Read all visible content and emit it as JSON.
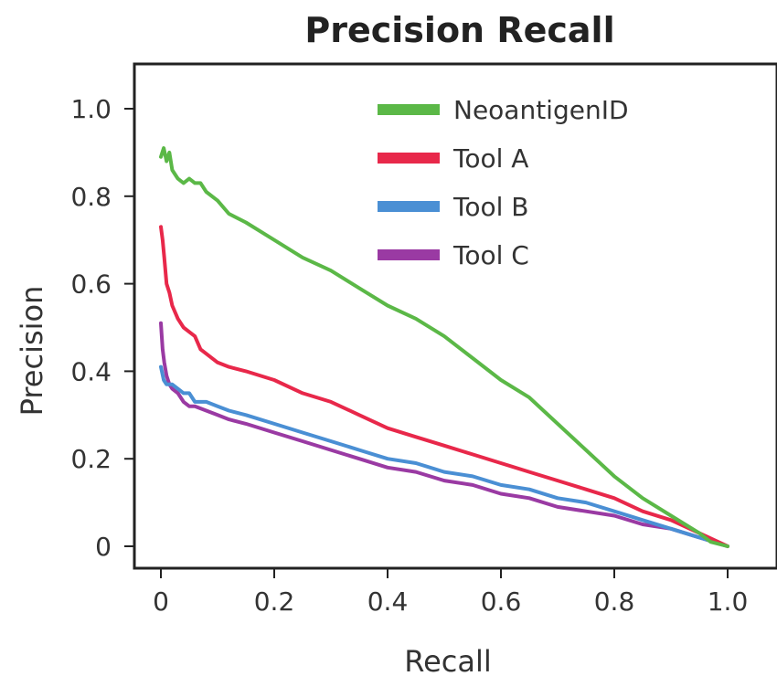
{
  "chart_data": {
    "type": "line",
    "title": "Precision Recall",
    "xlabel": "Recall",
    "ylabel": "Precision",
    "xlim": [
      0,
      1.0
    ],
    "ylim": [
      0,
      1.0
    ],
    "x_ticks": [
      "0",
      "0.2",
      "0.4",
      "0.6",
      "0.8",
      "1.0"
    ],
    "y_ticks": [
      "0",
      "0.2",
      "0.4",
      "0.6",
      "0.8",
      "1.0"
    ],
    "legend_position": "top-right",
    "grid": false,
    "series": [
      {
        "name": "NeoantigenID",
        "color": "#5bb847",
        "points": [
          [
            0.0,
            0.89
          ],
          [
            0.005,
            0.91
          ],
          [
            0.01,
            0.88
          ],
          [
            0.015,
            0.9
          ],
          [
            0.02,
            0.86
          ],
          [
            0.03,
            0.84
          ],
          [
            0.04,
            0.83
          ],
          [
            0.05,
            0.84
          ],
          [
            0.06,
            0.83
          ],
          [
            0.07,
            0.83
          ],
          [
            0.08,
            0.81
          ],
          [
            0.1,
            0.79
          ],
          [
            0.12,
            0.76
          ],
          [
            0.15,
            0.74
          ],
          [
            0.2,
            0.7
          ],
          [
            0.25,
            0.66
          ],
          [
            0.3,
            0.63
          ],
          [
            0.35,
            0.59
          ],
          [
            0.4,
            0.55
          ],
          [
            0.45,
            0.52
          ],
          [
            0.5,
            0.48
          ],
          [
            0.55,
            0.43
          ],
          [
            0.6,
            0.38
          ],
          [
            0.65,
            0.34
          ],
          [
            0.7,
            0.28
          ],
          [
            0.75,
            0.22
          ],
          [
            0.8,
            0.16
          ],
          [
            0.85,
            0.11
          ],
          [
            0.9,
            0.07
          ],
          [
            0.95,
            0.03
          ],
          [
            0.97,
            0.01
          ],
          [
            1.0,
            0.0
          ]
        ]
      },
      {
        "name": "Tool A",
        "color": "#e8284a",
        "points": [
          [
            0.0,
            0.73
          ],
          [
            0.003,
            0.7
          ],
          [
            0.006,
            0.66
          ],
          [
            0.01,
            0.6
          ],
          [
            0.015,
            0.58
          ],
          [
            0.02,
            0.55
          ],
          [
            0.03,
            0.52
          ],
          [
            0.04,
            0.5
          ],
          [
            0.05,
            0.49
          ],
          [
            0.06,
            0.48
          ],
          [
            0.07,
            0.45
          ],
          [
            0.08,
            0.44
          ],
          [
            0.1,
            0.42
          ],
          [
            0.12,
            0.41
          ],
          [
            0.15,
            0.4
          ],
          [
            0.2,
            0.38
          ],
          [
            0.25,
            0.35
          ],
          [
            0.3,
            0.33
          ],
          [
            0.35,
            0.3
          ],
          [
            0.4,
            0.27
          ],
          [
            0.45,
            0.25
          ],
          [
            0.5,
            0.23
          ],
          [
            0.55,
            0.21
          ],
          [
            0.6,
            0.19
          ],
          [
            0.65,
            0.17
          ],
          [
            0.7,
            0.15
          ],
          [
            0.75,
            0.13
          ],
          [
            0.8,
            0.11
          ],
          [
            0.85,
            0.08
          ],
          [
            0.9,
            0.06
          ],
          [
            0.95,
            0.03
          ],
          [
            1.0,
            0.0
          ]
        ]
      },
      {
        "name": "Tool B",
        "color": "#4a8fd4",
        "points": [
          [
            0.0,
            0.41
          ],
          [
            0.005,
            0.38
          ],
          [
            0.01,
            0.37
          ],
          [
            0.02,
            0.37
          ],
          [
            0.03,
            0.36
          ],
          [
            0.04,
            0.35
          ],
          [
            0.05,
            0.35
          ],
          [
            0.06,
            0.33
          ],
          [
            0.08,
            0.33
          ],
          [
            0.1,
            0.32
          ],
          [
            0.12,
            0.31
          ],
          [
            0.15,
            0.3
          ],
          [
            0.2,
            0.28
          ],
          [
            0.25,
            0.26
          ],
          [
            0.3,
            0.24
          ],
          [
            0.35,
            0.22
          ],
          [
            0.4,
            0.2
          ],
          [
            0.45,
            0.19
          ],
          [
            0.5,
            0.17
          ],
          [
            0.55,
            0.16
          ],
          [
            0.6,
            0.14
          ],
          [
            0.65,
            0.13
          ],
          [
            0.7,
            0.11
          ],
          [
            0.75,
            0.1
          ],
          [
            0.8,
            0.08
          ],
          [
            0.85,
            0.06
          ],
          [
            0.9,
            0.04
          ],
          [
            0.95,
            0.02
          ],
          [
            1.0,
            0.0
          ]
        ]
      },
      {
        "name": "Tool C",
        "color": "#9a3aa3",
        "points": [
          [
            0.0,
            0.51
          ],
          [
            0.003,
            0.45
          ],
          [
            0.006,
            0.42
          ],
          [
            0.01,
            0.39
          ],
          [
            0.015,
            0.37
          ],
          [
            0.02,
            0.36
          ],
          [
            0.03,
            0.35
          ],
          [
            0.04,
            0.33
          ],
          [
            0.05,
            0.32
          ],
          [
            0.06,
            0.32
          ],
          [
            0.08,
            0.31
          ],
          [
            0.1,
            0.3
          ],
          [
            0.12,
            0.29
          ],
          [
            0.15,
            0.28
          ],
          [
            0.2,
            0.26
          ],
          [
            0.25,
            0.24
          ],
          [
            0.3,
            0.22
          ],
          [
            0.35,
            0.2
          ],
          [
            0.4,
            0.18
          ],
          [
            0.45,
            0.17
          ],
          [
            0.5,
            0.15
          ],
          [
            0.55,
            0.14
          ],
          [
            0.6,
            0.12
          ],
          [
            0.65,
            0.11
          ],
          [
            0.7,
            0.09
          ],
          [
            0.75,
            0.08
          ],
          [
            0.8,
            0.07
          ],
          [
            0.85,
            0.05
          ],
          [
            0.9,
            0.04
          ],
          [
            0.95,
            0.02
          ],
          [
            1.0,
            0.0
          ]
        ]
      }
    ]
  }
}
